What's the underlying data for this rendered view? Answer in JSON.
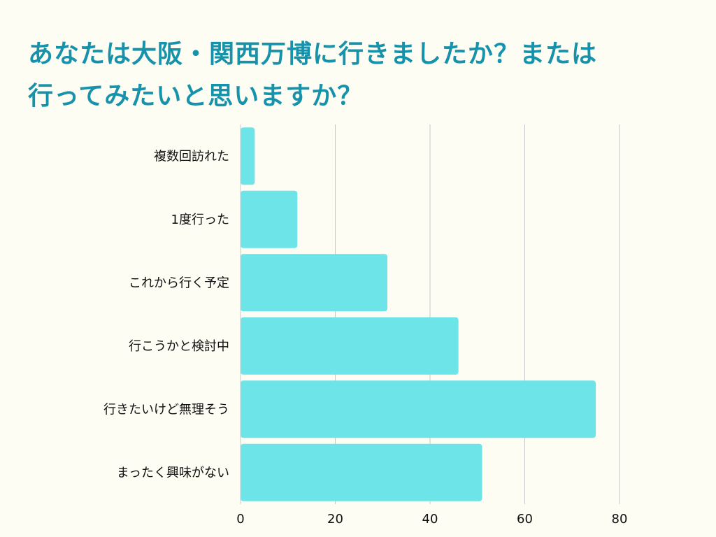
{
  "title": {
    "line1": "あなたは大阪・関西万博に行きましたか？または",
    "line2": "行ってみたいと思いますか？"
  },
  "colors": {
    "background": "#fdfdf4",
    "title": "#1792ab",
    "bar": "#6ce4e8",
    "grid": "#c8c8c8",
    "text": "#111111"
  },
  "chart_data": {
    "type": "bar",
    "orientation": "horizontal",
    "categories": [
      "複数回訪れた",
      "1度行った",
      "これから行く予定",
      "行こうかと検討中",
      "行きたいけど無理そう",
      "まったく興味がない"
    ],
    "values": [
      3,
      12,
      31,
      46,
      75,
      51
    ],
    "xlim": [
      0,
      92
    ],
    "xticks": [
      0,
      20,
      40,
      60,
      80
    ],
    "grid": true,
    "legend": "none"
  }
}
